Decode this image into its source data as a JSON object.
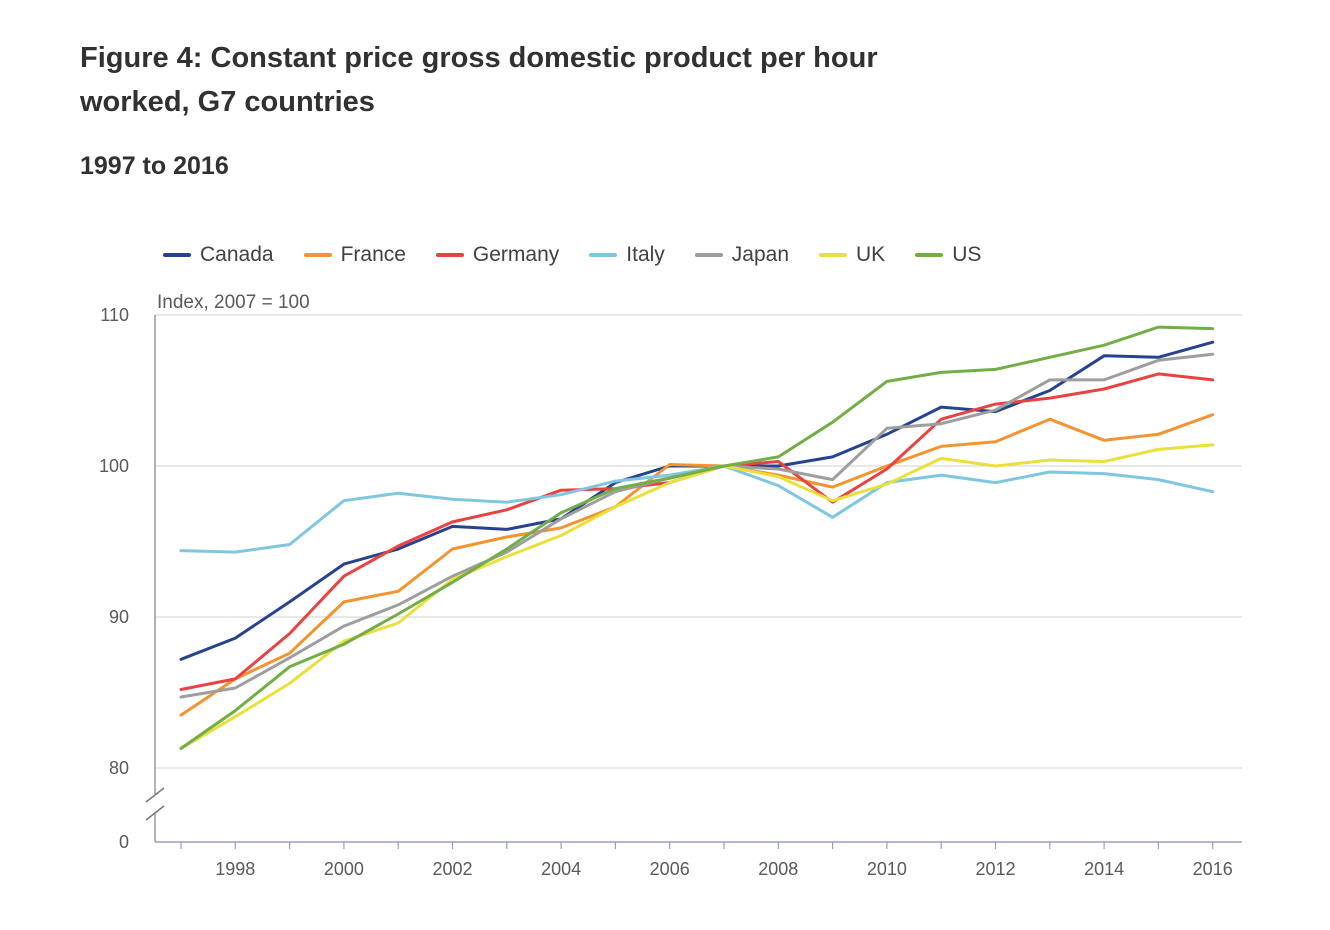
{
  "figure": {
    "title": "Figure 4: Constant price gross domestic product per hour worked, G7 countries",
    "subtitle": "1997 to 2016"
  },
  "chart_data": {
    "type": "line",
    "title": "Figure 4: Constant price gross domestic product per hour worked, G7 countries",
    "subtitle": "1997 to 2016",
    "xlabel": "",
    "ylabel": "Index, 2007 = 100",
    "x": [
      1997,
      1998,
      1999,
      2000,
      2001,
      2002,
      2003,
      2004,
      2005,
      2006,
      2007,
      2008,
      2009,
      2010,
      2011,
      2012,
      2013,
      2014,
      2015,
      2016
    ],
    "x_ticks": [
      "1998",
      "2000",
      "2002",
      "2004",
      "2006",
      "2008",
      "2010",
      "2012",
      "2014",
      "2016"
    ],
    "y_ticks": [
      "80",
      "90",
      "100",
      "110"
    ],
    "y_break_label": "0",
    "ylim": [
      80,
      110
    ],
    "axis_break": true,
    "grid": true,
    "legend_position": "top",
    "series": [
      {
        "name": "Canada",
        "color": "#27438f",
        "values": [
          87.2,
          88.6,
          91.0,
          93.5,
          94.5,
          96.0,
          95.8,
          96.5,
          98.9,
          100.0,
          100.0,
          100.0,
          100.6,
          102.1,
          103.9,
          103.6,
          105.0,
          107.3,
          107.2,
          108.2
        ]
      },
      {
        "name": "France",
        "color": "#f39431",
        "values": [
          83.5,
          85.9,
          87.6,
          91.0,
          91.7,
          94.5,
          95.3,
          95.9,
          97.3,
          100.1,
          100.0,
          99.4,
          98.6,
          100.0,
          101.3,
          101.6,
          103.1,
          101.7,
          102.1,
          103.4
        ]
      },
      {
        "name": "Germany",
        "color": "#e84342",
        "values": [
          85.2,
          85.9,
          88.9,
          92.7,
          94.7,
          96.3,
          97.1,
          98.4,
          98.5,
          98.9,
          100.0,
          100.3,
          97.6,
          99.8,
          103.1,
          104.1,
          104.5,
          105.1,
          106.1,
          105.7
        ]
      },
      {
        "name": "Italy",
        "color": "#7fc6e0",
        "values": [
          94.4,
          94.3,
          94.8,
          97.7,
          98.2,
          97.8,
          97.6,
          98.1,
          99.0,
          99.4,
          100.0,
          98.7,
          96.6,
          98.9,
          99.4,
          98.9,
          99.6,
          99.5,
          99.1,
          98.3
        ]
      },
      {
        "name": "Japan",
        "color": "#9e9e9e",
        "values": [
          84.7,
          85.3,
          87.3,
          89.4,
          90.8,
          92.7,
          94.3,
          96.5,
          98.3,
          99.2,
          100.0,
          99.8,
          99.1,
          102.5,
          102.8,
          103.7,
          105.7,
          105.7,
          107.0,
          107.4
        ]
      },
      {
        "name": "UK",
        "color": "#e9e03b",
        "values": [
          81.3,
          83.4,
          85.6,
          88.4,
          89.6,
          92.5,
          94.0,
          95.4,
          97.3,
          98.9,
          100.0,
          99.3,
          97.7,
          98.8,
          100.5,
          100.0,
          100.4,
          100.3,
          101.1,
          101.4
        ]
      },
      {
        "name": "US",
        "color": "#72ae45",
        "values": [
          81.3,
          83.8,
          86.7,
          88.2,
          90.2,
          92.3,
          94.5,
          96.9,
          98.5,
          99.2,
          100.0,
          100.6,
          102.9,
          105.6,
          106.2,
          106.4,
          107.2,
          108.0,
          109.2,
          109.1
        ]
      }
    ]
  }
}
